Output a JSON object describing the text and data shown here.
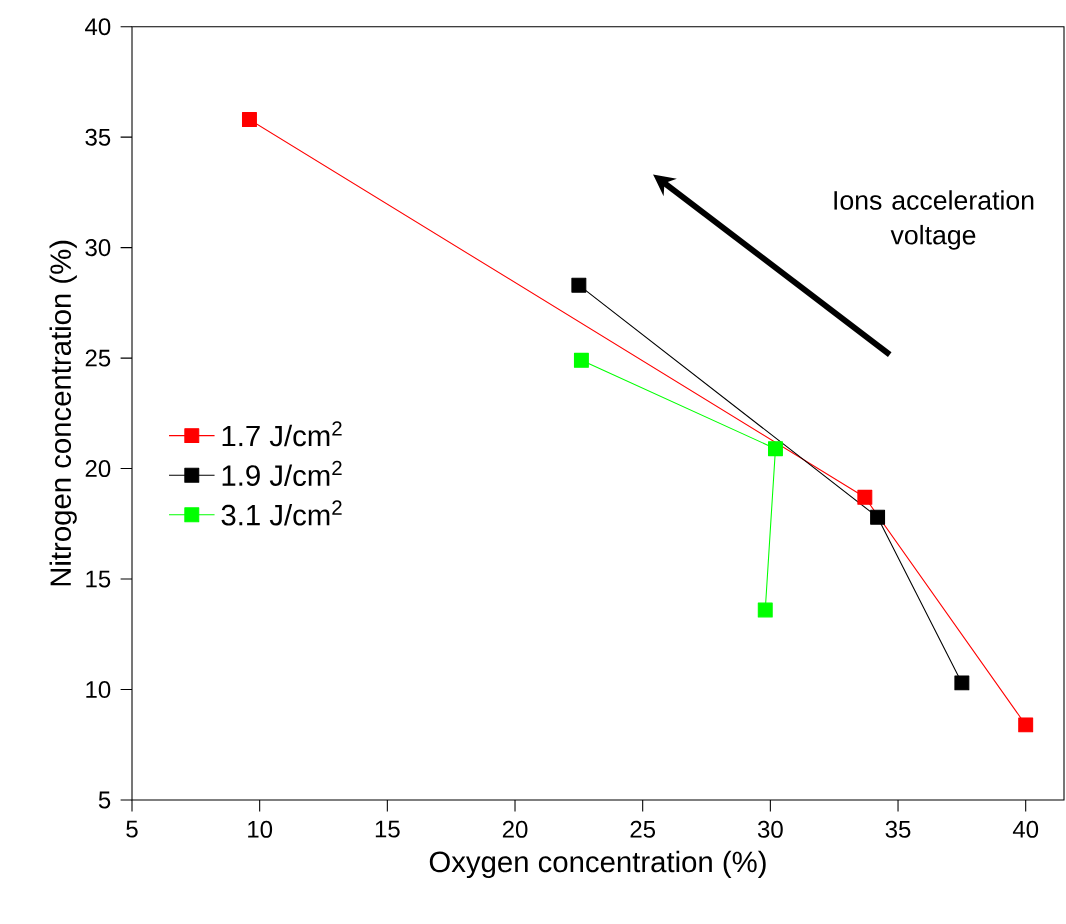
{
  "chart_data": {
    "type": "line",
    "xlabel": "Oxygen concentration (%)",
    "ylabel": "Nitrogen concentration (%)",
    "xlim": [
      5,
      41.5
    ],
    "ylim": [
      5,
      40
    ],
    "xticks": [
      5,
      10,
      15,
      20,
      25,
      30,
      35,
      40
    ],
    "yticks": [
      5,
      10,
      15,
      20,
      25,
      30,
      35,
      40
    ],
    "marker": "square",
    "legend": "left",
    "grid": false,
    "annotations": [
      "Ions acceleration voltage"
    ],
    "series": [
      {
        "name": "1.7 J/cm$^{2}$",
        "color": "#ff0000",
        "x": [
          9.6,
          33.7,
          40
        ],
        "values": [
          35.8,
          18.7,
          8.4
        ]
      },
      {
        "name": "1.9 J/cm$^{2}$",
        "color": "#000000",
        "x": [
          22.5,
          34.2,
          37.5
        ],
        "values": [
          28.3,
          17.8,
          10.3
        ]
      },
      {
        "name": "3.1 J/cm$^{2}$",
        "color": "#00ff00",
        "x": [
          22.6,
          30.2,
          29.8
        ],
        "values": [
          24.9,
          20.9,
          13.6
        ]
      }
    ]
  }
}
